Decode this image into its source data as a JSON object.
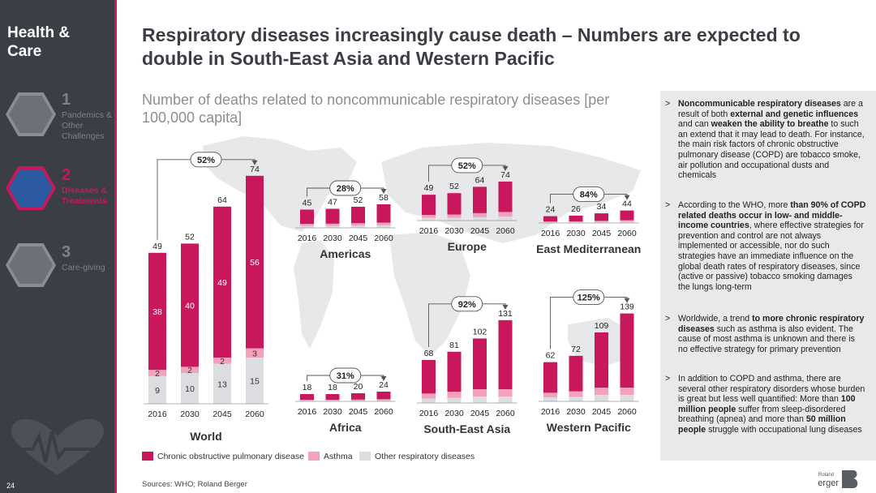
{
  "sidebar": {
    "title": "Health & Care",
    "page_number": "24",
    "items": [
      {
        "number": "1",
        "label": "Pandemics & Other Challenges",
        "active": false
      },
      {
        "number": "2",
        "label": "Diseases & Treatments",
        "active": true
      },
      {
        "number": "3",
        "label": "Care-giving",
        "active": false
      }
    ]
  },
  "header": {
    "title": "Respiratory diseases increasingly cause death – Numbers are expected to double in South-East Asia and Western Pacific",
    "subtitle": "Number of deaths related to noncommunicable respiratory diseases [per 100,000 capita]"
  },
  "colors": {
    "copd": "#c8175c",
    "asthma": "#f2a2bb",
    "other": "#dcdde0",
    "sidebar": "#3b3f45",
    "panel": "#e8e9eb"
  },
  "chart_data": {
    "type": "bar",
    "stacked": true,
    "years": [
      "2016",
      "2030",
      "2045",
      "2060"
    ],
    "series_names": [
      "Chronic obstructive pulmonary disease",
      "Asthma",
      "Other respiratory diseases"
    ],
    "charts": [
      {
        "region": "World",
        "totals": [
          49,
          52,
          64,
          74
        ],
        "change": "52%",
        "segments": {
          "copd": [
            38,
            40,
            49,
            56
          ],
          "asthma": [
            2,
            2,
            2,
            3
          ],
          "other": [
            9,
            10,
            13,
            15
          ]
        }
      },
      {
        "region": "Americas",
        "totals": [
          45,
          47,
          52,
          58
        ],
        "change": "28%"
      },
      {
        "region": "Europe",
        "totals": [
          49,
          52,
          64,
          74
        ],
        "change": "52%"
      },
      {
        "region": "East Mediterranean",
        "totals": [
          24,
          26,
          34,
          44
        ],
        "change": "84%"
      },
      {
        "region": "Africa",
        "totals": [
          18,
          18,
          20,
          24
        ],
        "change": "31%"
      },
      {
        "region": "South-East Asia",
        "totals": [
          68,
          81,
          102,
          131
        ],
        "change": "92%"
      },
      {
        "region": "Western Pacific",
        "totals": [
          62,
          72,
          109,
          139
        ],
        "change": "125%"
      }
    ]
  },
  "legend": [
    "Chronic obstructive pulmonary disease",
    "Asthma",
    "Other respiratory diseases"
  ],
  "bullets": [
    [
      {
        "t": "Noncommunicable respiratory diseases",
        "b": true
      },
      {
        "t": " are a result of both ",
        "b": false
      },
      {
        "t": "external and genetic influences",
        "b": true
      },
      {
        "t": " and can ",
        "b": false
      },
      {
        "t": "weaken the ability to breathe",
        "b": true
      },
      {
        "t": " to such an extend that it may lead to death. For instance, the main risk factors of chronic obstructive pulmonary disease (COPD) are tobacco smoke, air pollution and occupational dusts and chemicals",
        "b": false
      }
    ],
    [
      {
        "t": "According to the WHO, more ",
        "b": false
      },
      {
        "t": "than 90% of COPD related deaths occur in low- and middle-income countries",
        "b": true
      },
      {
        "t": ", where effective strategies for prevention and control are not always implemented or accessible, nor do such strategies have an immediate influence on the global death rates of respiratory diseases, since (active or passive) tobacco smoking damages the lungs long-term",
        "b": false
      }
    ],
    [
      {
        "t": "Worldwide, a trend ",
        "b": false
      },
      {
        "t": "to more chronic respiratory diseases",
        "b": true
      },
      {
        "t": " such as asthma is also evident. The cause of most asthma is unknown and there is no effective strategy for primary prevention",
        "b": false
      }
    ],
    [
      {
        "t": "In addition to COPD and asthma, there are several other respiratory disorders whose burden is great but less well quantified: More than ",
        "b": false
      },
      {
        "t": "100 million people",
        "b": true
      },
      {
        "t": " suffer from sleep-disordered breathing (apnea) and more than ",
        "b": false
      },
      {
        "t": "50 million people",
        "b": true
      },
      {
        "t": " struggle with occupational lung diseases",
        "b": false
      }
    ]
  ],
  "bullet_marker": ">",
  "sources": "Sources: WHO; Roland Berger",
  "logo": {
    "small": "Roland",
    "big": "Berger"
  }
}
